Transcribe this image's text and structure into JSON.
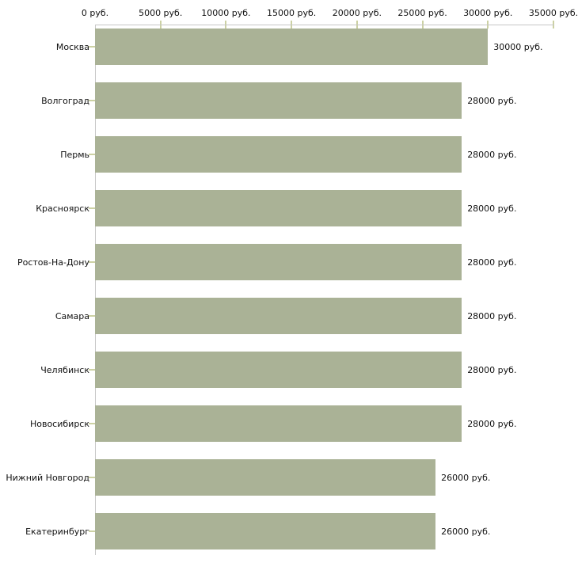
{
  "chart_data": {
    "type": "bar",
    "orientation": "horizontal",
    "unit": "руб.",
    "categories": [
      "Москва",
      "Волгоград",
      "Пермь",
      "Красноярск",
      "Ростов-На-Дону",
      "Самара",
      "Челябинск",
      "Новосибирск",
      "Нижний Новгород",
      "Екатеринбург"
    ],
    "values": [
      30000,
      28000,
      28000,
      28000,
      28000,
      28000,
      28000,
      28000,
      26000,
      26000
    ],
    "value_labels": [
      "30000 руб.",
      "28000 руб.",
      "28000 руб.",
      "28000 руб.",
      "28000 руб.",
      "28000 руб.",
      "28000 руб.",
      "28000 руб.",
      "26000 руб.",
      "26000 руб."
    ],
    "x_axis": {
      "position": "top",
      "min": 0,
      "max": 35000,
      "tick_values": [
        0,
        5000,
        10000,
        15000,
        20000,
        25000,
        30000,
        35000
      ],
      "tick_labels": [
        "0 руб.",
        "5000 руб.",
        "10000 руб.",
        "15000 руб.",
        "20000 руб.",
        "25000 руб.",
        "30000 руб.",
        "35000 руб."
      ],
      "grid": false
    },
    "legend": "none",
    "colors": {
      "bar": "#aab296",
      "axis_line": "#c6c6c6",
      "tick": "#ccd1a3",
      "text": "#111111"
    }
  }
}
